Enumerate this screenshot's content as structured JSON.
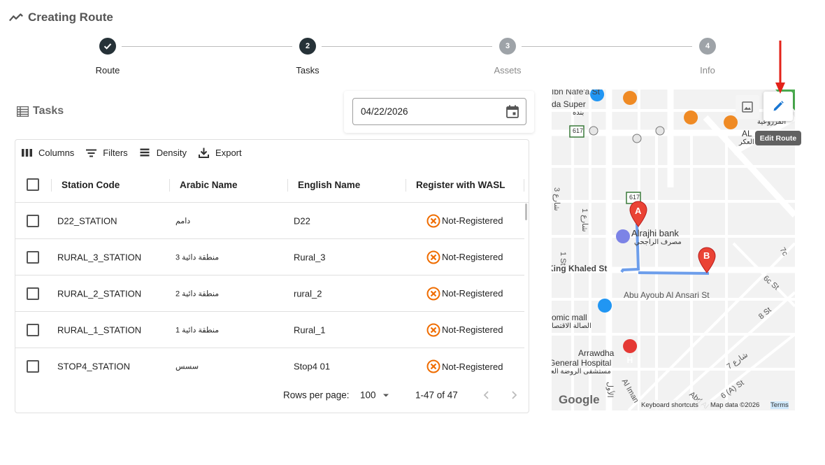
{
  "page": {
    "title": "Creating Route"
  },
  "stepper": {
    "steps": [
      {
        "number": "✓",
        "label": "Route",
        "state": "done"
      },
      {
        "number": "2",
        "label": "Tasks",
        "state": "active"
      },
      {
        "number": "3",
        "label": "Assets",
        "state": "todo"
      },
      {
        "number": "4",
        "label": "Info",
        "state": "todo"
      }
    ]
  },
  "tasks": {
    "heading": "Tasks",
    "date_value": "04/22/2026",
    "toolbar": {
      "columns": "Columns",
      "filters": "Filters",
      "density": "Density",
      "export": "Export"
    },
    "columns": {
      "station_code": "Station Code",
      "arabic_name": "Arabic Name",
      "english_name": "English Name",
      "wasl": "Register with WASL"
    },
    "rows": [
      {
        "station_code": "D22_STATION",
        "arabic_name": "دامم",
        "english_name": "D22",
        "wasl": "Not-Registered"
      },
      {
        "station_code": "RURAL_3_STATION",
        "arabic_name": "منطقة دائية 3",
        "english_name": "Rural_3",
        "wasl": "Not-Registered"
      },
      {
        "station_code": "RURAL_2_STATION",
        "arabic_name": "منطقة دائية 2",
        "english_name": "rural_2",
        "wasl": "Not-Registered"
      },
      {
        "station_code": "RURAL_1_STATION",
        "arabic_name": "منطقة دائية 1",
        "english_name": "Rural_1",
        "wasl": "Not-Registered"
      },
      {
        "station_code": "STOP4_STATION",
        "arabic_name": "سسس",
        "english_name": "Stop4 01",
        "wasl": "Not-Registered"
      }
    ],
    "footer": {
      "rows_per_page_label": "Rows per page:",
      "rows_per_page": "100",
      "range": "1-47 of 47"
    }
  },
  "map": {
    "tooltip": "Edit Route",
    "labels": {
      "ibn_nafea": "Ibn Nafe'a St",
      "da_super": "da Super",
      "bnda": "بنده",
      "al": "AL",
      "alak": "العكر",
      "mazrouia": "المزروعية",
      "road_617a": "617",
      "road_617b": "617",
      "alrajhi": "Alrajhi bank",
      "alrajhi_ar": "مصرف الراجحي",
      "king_khaled": "King Khaled St",
      "abu_ayoub": "Abu Ayoub Al Ansari St",
      "st1": "1 St",
      "st1_ar": "شارع 1",
      "st3": "شارع 3",
      "st6c": "6c St",
      "st7c": "7c",
      "st8": "8 St",
      "st7_ar": "شارع 7",
      "st6a": "6 (A) St",
      "abd_al": "Abd Al",
      "economic_mall": "omic mall",
      "economic_mall_ar": "الصالة الاقتصا",
      "arrawdha": "Arrawdha",
      "general_hospital": "General Hospital",
      "hospital_ar": "مستشفى الروضة العا",
      "al_iman": "Al Iman",
      "al_awal": "الأول",
      "marker_a": "A",
      "marker_b": "B",
      "google": "Google",
      "shortcuts": "Keyboard shortcuts",
      "map_data": "Map data ©2026",
      "terms": "Terms"
    }
  }
}
